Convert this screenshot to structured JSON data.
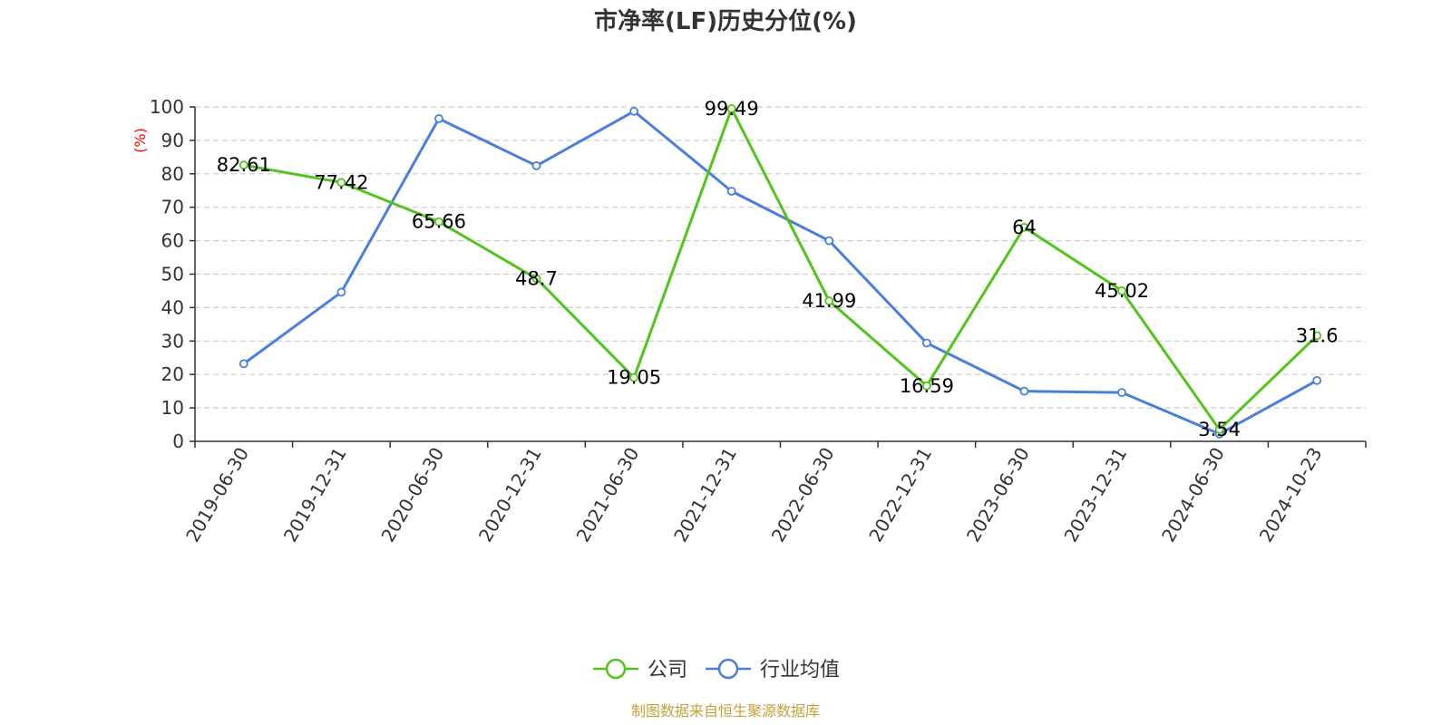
{
  "chart_data": {
    "type": "line",
    "title": "市净率(LF)历史分位(%)",
    "ylabel": "(%)",
    "xlabel": "",
    "categories": [
      "2019-06-30",
      "2019-12-31",
      "2020-06-30",
      "2020-12-31",
      "2021-06-30",
      "2021-12-31",
      "2022-06-30",
      "2022-12-31",
      "2023-06-30",
      "2023-12-31",
      "2024-06-30",
      "2024-10-23"
    ],
    "ylim": [
      0,
      100
    ],
    "yticks": [
      0,
      10,
      20,
      30,
      40,
      50,
      60,
      70,
      80,
      90,
      100
    ],
    "grid": true,
    "legend_position": "bottom",
    "series": [
      {
        "name": "公司",
        "color": "#52c41a",
        "show_labels": true,
        "values": [
          82.61,
          77.42,
          65.66,
          48.7,
          19.05,
          99.49,
          41.99,
          16.59,
          64,
          45.02,
          3.54,
          31.6
        ]
      },
      {
        "name": "行业均值",
        "color": "#4a7fdc",
        "show_labels": false,
        "values": [
          23.2,
          44.6,
          96.5,
          82.4,
          98.7,
          74.8,
          60.0,
          29.4,
          15.0,
          14.6,
          2.2,
          18.2
        ]
      }
    ]
  },
  "source": "制图数据来自恒生聚源数据库"
}
